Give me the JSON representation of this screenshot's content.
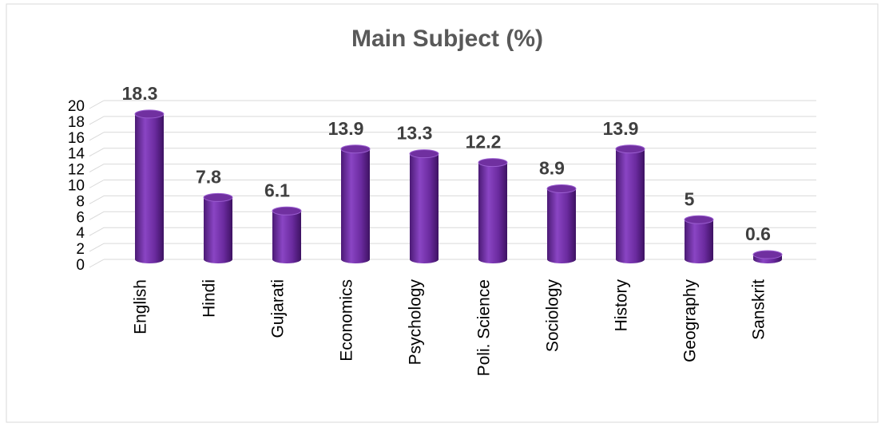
{
  "chart_data": {
    "type": "bar",
    "title": "Main Subject (%)",
    "categories": [
      "English",
      "Hindi",
      "Gujarati",
      "Economics",
      "Psychology",
      "Poli. Science",
      "Sociology",
      "History",
      "Geography",
      "Sanskrit"
    ],
    "values": [
      18.3,
      7.8,
      6.1,
      13.9,
      13.3,
      12.2,
      8.9,
      13.9,
      5,
      0.6
    ],
    "color": "#7030a0",
    "ylim": [
      0,
      20
    ],
    "yticks": [
      0,
      2,
      4,
      6,
      8,
      10,
      12,
      14,
      16,
      18,
      20
    ],
    "grid": true
  }
}
